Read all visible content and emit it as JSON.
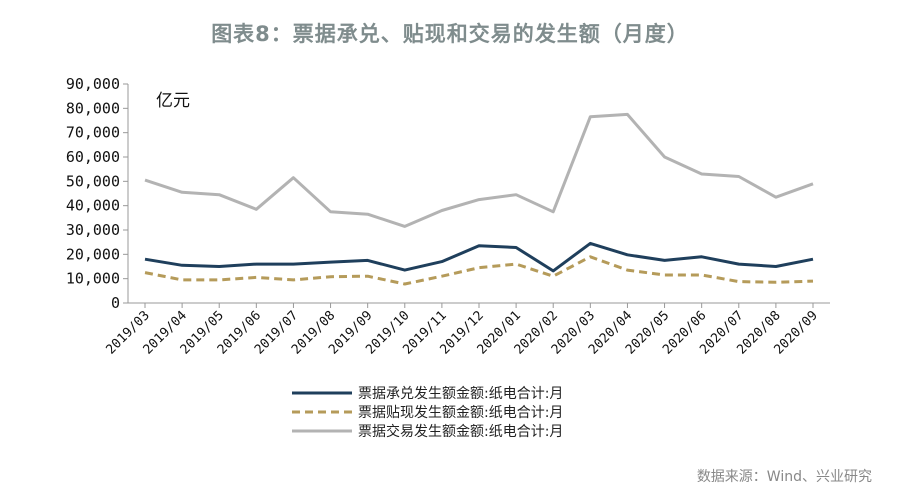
{
  "title": "图表8：票据承兑、贴现和交易的发生额（月度）",
  "source": "数据来源：Wind、兴业研究",
  "chart_data": {
    "type": "line",
    "title": "图表8：票据承兑、贴现和交易的发生额（月度）",
    "ylabel": "亿元",
    "xlabel": "",
    "ylim": [
      0,
      90000
    ],
    "yticks": [
      0,
      10000,
      20000,
      30000,
      40000,
      50000,
      60000,
      70000,
      80000,
      90000
    ],
    "ytick_labels": [
      "0",
      "10,000",
      "20,000",
      "30,000",
      "40,000",
      "50,000",
      "60,000",
      "70,000",
      "80,000",
      "90,000"
    ],
    "grid": false,
    "legend": "bottom",
    "categories": [
      "2019/03",
      "2019/04",
      "2019/05",
      "2019/06",
      "2019/07",
      "2019/08",
      "2019/09",
      "2019/10",
      "2019/11",
      "2019/12",
      "2020/01",
      "2020/02",
      "2020/03",
      "2020/04",
      "2020/05",
      "2020/06",
      "2020/07",
      "2020/08",
      "2020/09"
    ],
    "series": [
      {
        "name": "票据承兑发生额金额:纸电合计:月",
        "color": "#1f3f5c",
        "dash": "solid",
        "values": [
          18000,
          15500,
          15000,
          16000,
          16000,
          16800,
          17500,
          13500,
          17000,
          23500,
          22800,
          13200,
          24500,
          19800,
          17500,
          19000,
          16000,
          15000,
          18000
        ]
      },
      {
        "name": "票据贴现发生额金额:纸电合计:月",
        "color": "#b59b5a",
        "dash": "dashed",
        "values": [
          12500,
          9500,
          9500,
          10500,
          9500,
          10800,
          11000,
          7800,
          11000,
          14500,
          16000,
          11000,
          19000,
          13500,
          11500,
          11500,
          8800,
          8500,
          9000
        ]
      },
      {
        "name": "票据交易发生额金额:纸电合计:月",
        "color": "#b3b3b3",
        "dash": "solid",
        "values": [
          50500,
          45500,
          44500,
          38500,
          51500,
          37500,
          36500,
          31500,
          38000,
          42500,
          44500,
          37500,
          76500,
          77500,
          60000,
          53000,
          52000,
          43500,
          49000
        ]
      }
    ]
  }
}
